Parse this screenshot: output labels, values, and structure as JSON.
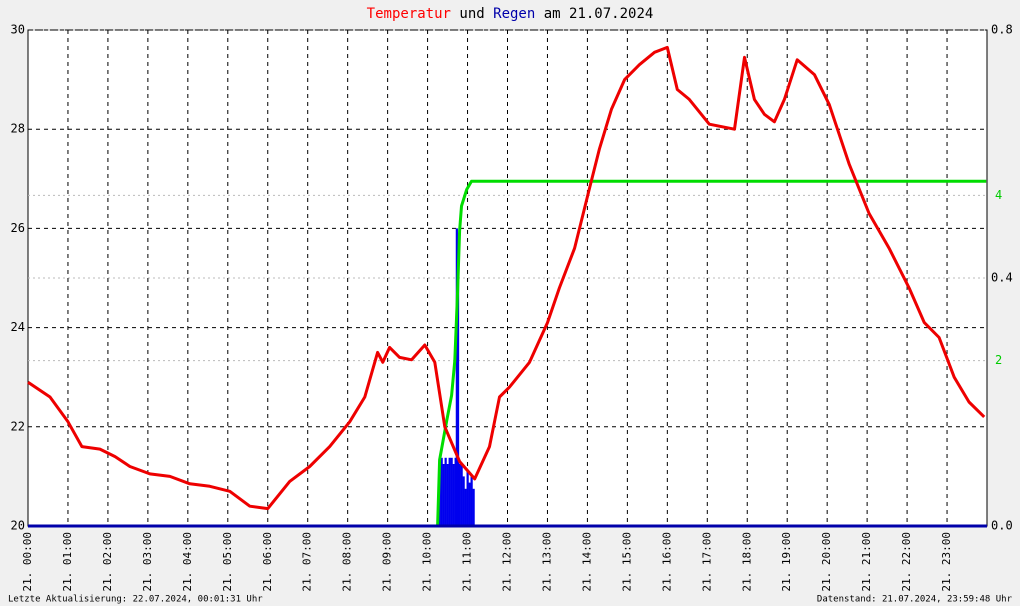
{
  "chart_data": {
    "type": "line",
    "title_parts": [
      {
        "text": "Temperatur",
        "color": "#ff0000"
      },
      {
        "text": "und",
        "color": "#000000"
      },
      {
        "text": "Regen",
        "color": "#0000aa"
      },
      {
        "text": "am 21.07.2024",
        "color": "#000000"
      }
    ],
    "footer_left": "Letzte Aktualisierung: 22.07.2024, 00:01:31 Uhr",
    "footer_right": "Datenstand: 21.07.2024, 23:59:48 Uhr",
    "xlim": [
      0,
      24
    ],
    "xticks": [
      {
        "value": 0,
        "label": "21. 00:00"
      },
      {
        "value": 1,
        "label": "21. 01:00"
      },
      {
        "value": 2,
        "label": "21. 02:00"
      },
      {
        "value": 3,
        "label": "21. 03:00"
      },
      {
        "value": 4,
        "label": "21. 04:00"
      },
      {
        "value": 5,
        "label": "21. 05:00"
      },
      {
        "value": 6,
        "label": "21. 06:00"
      },
      {
        "value": 7,
        "label": "21. 07:00"
      },
      {
        "value": 8,
        "label": "21. 08:00"
      },
      {
        "value": 9,
        "label": "21. 09:00"
      },
      {
        "value": 10,
        "label": "21. 10:00"
      },
      {
        "value": 11,
        "label": "21. 11:00"
      },
      {
        "value": 12,
        "label": "21. 12:00"
      },
      {
        "value": 13,
        "label": "21. 13:00"
      },
      {
        "value": 14,
        "label": "21. 14:00"
      },
      {
        "value": 15,
        "label": "21. 15:00"
      },
      {
        "value": 16,
        "label": "21. 16:00"
      },
      {
        "value": 17,
        "label": "21. 17:00"
      },
      {
        "value": 18,
        "label": "21. 18:00"
      },
      {
        "value": 19,
        "label": "21. 19:00"
      },
      {
        "value": 20,
        "label": "21. 20:00"
      },
      {
        "value": 21,
        "label": "21. 21:00"
      },
      {
        "value": 22,
        "label": "21. 22:00"
      },
      {
        "value": 23,
        "label": "21. 23:00"
      }
    ],
    "ylim": [
      20,
      30
    ],
    "yticks": [
      20,
      22,
      24,
      26,
      28,
      30
    ],
    "y2lim": [
      0,
      0.8
    ],
    "y2ticks": [
      {
        "value": 0,
        "label": "0.0"
      },
      0.4,
      0.8
    ],
    "y3lim": [
      0,
      6
    ],
    "y3ticks": [
      2,
      4
    ],
    "y3color": "#00cc00",
    "grid": true,
    "temperature": {
      "color": "#ee0000",
      "x": [
        0,
        0.55,
        1.0,
        1.35,
        1.8,
        2.18,
        2.55,
        3.05,
        3.55,
        4.05,
        4.55,
        5.05,
        5.55,
        6.0,
        6.55,
        7.05,
        7.55,
        8.05,
        8.43,
        8.75,
        8.88,
        9.05,
        9.3,
        9.6,
        9.93,
        10.18,
        10.43,
        10.8,
        11.18,
        11.55,
        11.8,
        12.05,
        12.55,
        13.0,
        13.3,
        13.68,
        14.05,
        14.3,
        14.6,
        14.93,
        15.3,
        15.68,
        16.0,
        16.25,
        16.55,
        17.05,
        17.68,
        17.93,
        18.18,
        18.43,
        18.68,
        18.93,
        19.25,
        19.68,
        20.05,
        20.55,
        21.05,
        21.55,
        22.05,
        22.43,
        22.8,
        23.18,
        23.55,
        23.93
      ],
      "values": [
        22.9,
        22.6,
        22.1,
        21.6,
        21.55,
        21.4,
        21.2,
        21.05,
        21.0,
        20.85,
        20.8,
        20.7,
        20.4,
        20.35,
        20.9,
        21.2,
        21.6,
        22.1,
        22.6,
        23.5,
        23.3,
        23.6,
        23.4,
        23.35,
        23.65,
        23.3,
        22.0,
        21.3,
        20.95,
        21.6,
        22.6,
        22.8,
        23.3,
        24.1,
        24.8,
        25.6,
        26.8,
        27.6,
        28.4,
        29.0,
        29.3,
        29.55,
        29.65,
        28.8,
        28.6,
        28.1,
        28.0,
        29.45,
        28.6,
        28.3,
        28.15,
        28.6,
        29.4,
        29.1,
        28.5,
        27.3,
        26.3,
        25.6,
        24.8,
        24.1,
        23.8,
        23.0,
        22.5,
        22.2
      ]
    },
    "rain_total": {
      "color": "#00dd00",
      "axis": "y3",
      "x": [
        0,
        10.25,
        10.3,
        10.48,
        10.6,
        10.68,
        10.75,
        10.8,
        10.85,
        10.98,
        11.1,
        23.98
      ],
      "values": [
        0,
        0,
        0.8,
        1.28,
        1.58,
        2.0,
        2.84,
        3.57,
        3.87,
        4.07,
        4.17,
        4.17
      ]
    },
    "rain": {
      "color": "#0000ee",
      "axis": "y2",
      "x": [
        10.3,
        10.35,
        10.4,
        10.45,
        10.5,
        10.55,
        10.6,
        10.65,
        10.7,
        10.73,
        10.76,
        10.8,
        10.85,
        10.9,
        10.95,
        11.0,
        11.05,
        11.1,
        11.15
      ],
      "values": [
        0.11,
        0.11,
        0.1,
        0.11,
        0.1,
        0.11,
        0.11,
        0.1,
        0.11,
        0.48,
        0.41,
        0.1,
        0.1,
        0.08,
        0.06,
        0.09,
        0.07,
        0.08,
        0.06
      ]
    }
  }
}
